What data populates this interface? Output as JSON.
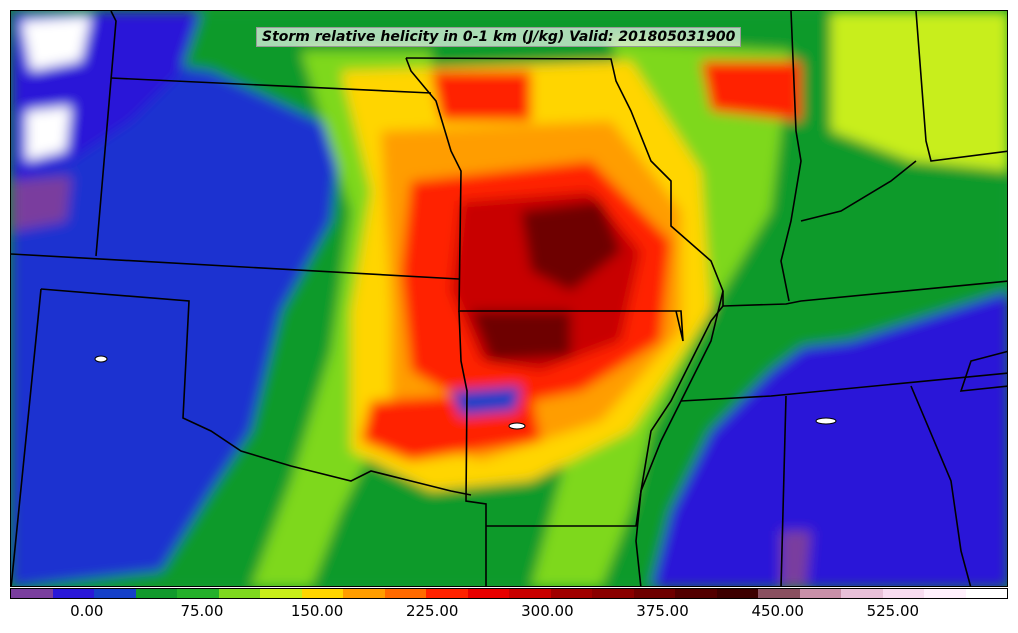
{
  "title": "Storm relative helicity in 0-1 km (J/kg) Valid: 201805031900",
  "colorbar": {
    "colors": [
      "#7a3e9e",
      "#2a18d8",
      "#1540c8",
      "#119a2c",
      "#24b02a",
      "#7ed81e",
      "#c8ee1a",
      "#ffd500",
      "#ff9d00",
      "#ff6a00",
      "#ff2200",
      "#e80000",
      "#c80000",
      "#a00000",
      "#8a0000",
      "#6e0000",
      "#520000",
      "#3c0000",
      "#8a5060",
      "#c890a8",
      "#e8c0d8",
      "#f8dcf0",
      "#fff0fc",
      "#ffffff"
    ],
    "ticks": [
      "0.00",
      "75.00",
      "150.00",
      "225.00",
      "300.00",
      "375.00",
      "450.00",
      "525.00"
    ],
    "tick_values": [
      0,
      75,
      150,
      225,
      300,
      375,
      450,
      525
    ],
    "min": -50,
    "max": 600
  },
  "map": {
    "field_colors": {
      "background": "#119a2c",
      "low_purple": "#7a3e9e",
      "low_blue": "#2a18d8",
      "mid_blue": "#1540c8",
      "green": "#119a2c",
      "light_green": "#7ed81e",
      "yellow_green": "#c8ee1a",
      "yellow": "#ffd500",
      "orange": "#ff9d00",
      "red": "#ff2200",
      "dark_red": "#c80000",
      "maroon": "#6e0000"
    }
  }
}
